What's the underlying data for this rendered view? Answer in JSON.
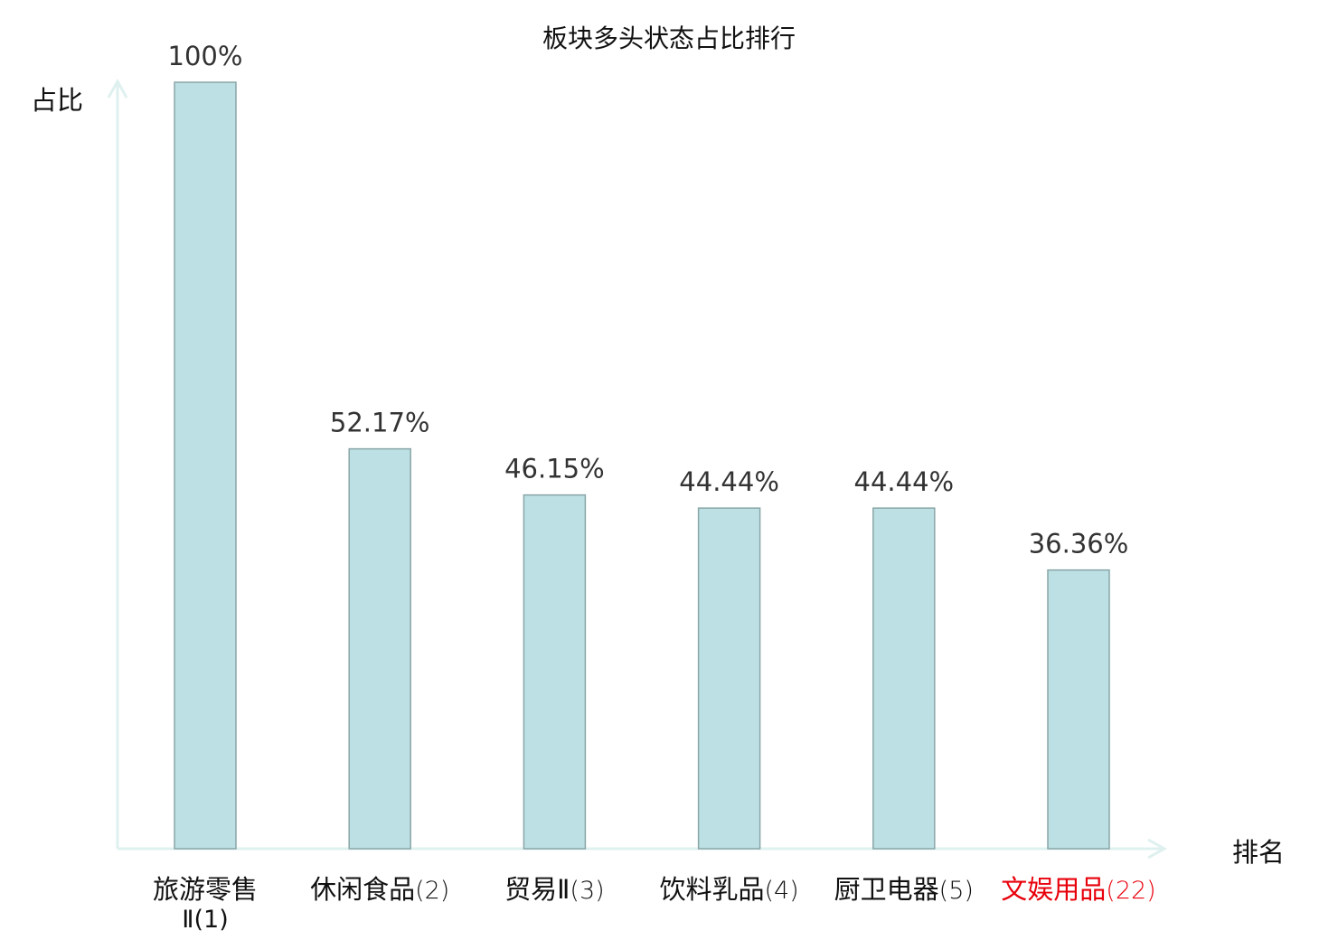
{
  "chart_data": {
    "type": "bar",
    "title": "板块多头状态占比排行",
    "xlabel": "排名",
    "ylabel": "占比",
    "ylim": [
      0,
      100
    ],
    "grid": false,
    "categories": [
      {
        "name": "旅游零售Ⅱ",
        "rank": "(1)",
        "highlight": false
      },
      {
        "name": "休闲食品",
        "rank": "(2)",
        "highlight": false
      },
      {
        "name": "贸易Ⅱ",
        "rank": "(3)",
        "highlight": false
      },
      {
        "name": "饮料乳品",
        "rank": "(4)",
        "highlight": false
      },
      {
        "name": "厨卫电器",
        "rank": "(5)",
        "highlight": false
      },
      {
        "name": "文娱用品",
        "rank": "(22)",
        "highlight": true
      }
    ],
    "values": [
      100,
      52.17,
      46.15,
      44.44,
      44.44,
      36.36
    ],
    "data_labels": [
      "100%",
      "52.17%",
      "46.15%",
      "44.44%",
      "44.44%",
      "36.36%"
    ],
    "colors": {
      "bar_fill": "#bce0e3",
      "bar_stroke": "#8aa5a8",
      "axis": "#dff1ef",
      "highlight_label": "#e8000b",
      "text": "#333333"
    }
  }
}
